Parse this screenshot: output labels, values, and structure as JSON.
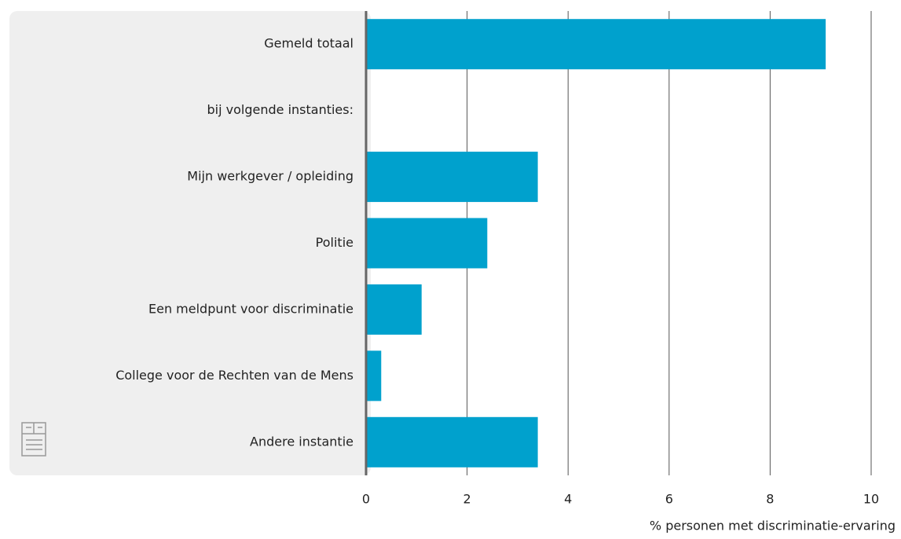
{
  "chart_data": {
    "type": "barh",
    "categories": [
      "Gemeld totaal",
      "bij volgende instanties:",
      "Mijn werkgever / opleiding",
      "Politie",
      "Een meldpunt voor discriminatie",
      "College voor de Rechten van de Mens",
      "Andere instantie"
    ],
    "values": [
      9.1,
      null,
      3.4,
      2.4,
      1.1,
      0.3,
      3.4
    ],
    "color": "#00a1cd",
    "xlim": [
      0,
      10
    ],
    "xticks": [
      0,
      2,
      4,
      6,
      8,
      10
    ],
    "xlabel": "% personen met discriminatie-ervaring",
    "grid": true
  }
}
